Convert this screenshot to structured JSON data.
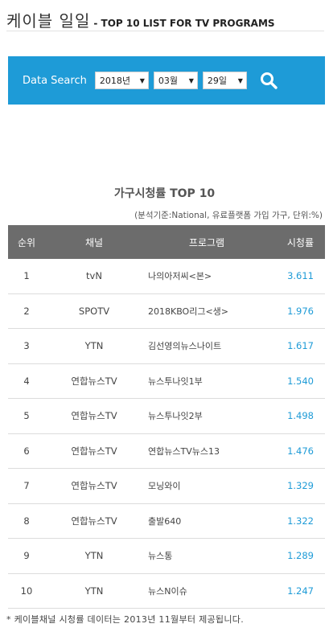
{
  "header": {
    "title_main": "케이블 일일",
    "title_sub": "- TOP 10 LIST FOR TV PROGRAMS"
  },
  "search": {
    "label": "Data Search",
    "year": "2018년",
    "month": "03월",
    "day": "29일",
    "button_icon": "search-icon"
  },
  "table": {
    "title": "가구시청률 TOP 10",
    "note": "(분석기준:National, 유료플랫폼 가입 가구, 단위:%)",
    "headers": [
      "순위",
      "채널",
      "프로그램",
      "시청률"
    ],
    "rows": [
      {
        "rank": "1",
        "channel": "tvN",
        "program": "나의아저씨<본>",
        "rating": "3.611"
      },
      {
        "rank": "2",
        "channel": "SPOTV",
        "program": "2018KBO리그<생>",
        "rating": "1.976"
      },
      {
        "rank": "3",
        "channel": "YTN",
        "program": "김선영의뉴스나이트",
        "rating": "1.617"
      },
      {
        "rank": "4",
        "channel": "연합뉴스TV",
        "program": "뉴스투나잇1부",
        "rating": "1.540"
      },
      {
        "rank": "5",
        "channel": "연합뉴스TV",
        "program": "뉴스투나잇2부",
        "rating": "1.498"
      },
      {
        "rank": "6",
        "channel": "연합뉴스TV",
        "program": "연합뉴스TV뉴스13",
        "rating": "1.476"
      },
      {
        "rank": "7",
        "channel": "연합뉴스TV",
        "program": "모닝와이",
        "rating": "1.329"
      },
      {
        "rank": "8",
        "channel": "연합뉴스TV",
        "program": "출발640",
        "rating": "1.322"
      },
      {
        "rank": "9",
        "channel": "YTN",
        "program": "뉴스통",
        "rating": "1.289"
      },
      {
        "rank": "10",
        "channel": "YTN",
        "program": "뉴스N이슈",
        "rating": "1.247"
      }
    ]
  },
  "footnote": "* 케이블채널 시청률 데이터는 2013년 11월부터 제공됩니다.",
  "colors": {
    "accent": "#1e9bd7",
    "table_header": "#6c6c6c"
  }
}
